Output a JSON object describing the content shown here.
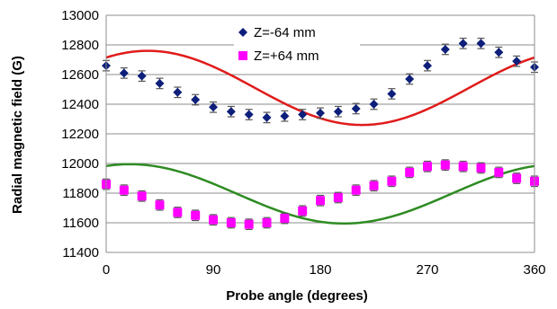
{
  "chart_data": {
    "type": "scatter",
    "xlabel": "Probe angle (degrees)",
    "ylabel": "Radial magnetic field (G)",
    "xlim": [
      0,
      360
    ],
    "ylim": [
      11400,
      13000
    ],
    "xticks": [
      0,
      90,
      180,
      270,
      360
    ],
    "yticks": [
      11400,
      11600,
      11800,
      12000,
      12200,
      12400,
      12600,
      12800,
      13000
    ],
    "grid": "horizontal",
    "legend_position": "top-center",
    "x": [
      0,
      15,
      30,
      45,
      60,
      75,
      90,
      105,
      120,
      135,
      150,
      165,
      180,
      195,
      210,
      225,
      240,
      255,
      270,
      285,
      300,
      315,
      330,
      345,
      360
    ],
    "series": [
      {
        "name": "Z=-64 mm",
        "marker": "diamond",
        "color": "#0d1f7a",
        "values": [
          12660,
          12610,
          12590,
          12540,
          12480,
          12430,
          12380,
          12350,
          12330,
          12310,
          12320,
          12330,
          12340,
          12350,
          12370,
          12400,
          12470,
          12570,
          12660,
          12770,
          12810,
          12810,
          12750,
          12690,
          12650
        ],
        "error": 35,
        "fit": {
          "type": "sinusoid",
          "mean": 12510,
          "amplitude": 250,
          "phase_deg": 125,
          "color": "#e01b1b"
        }
      },
      {
        "name": "Z=+64 mm",
        "marker": "square",
        "color": "#ff00ff",
        "values": [
          11860,
          11820,
          11780,
          11720,
          11670,
          11650,
          11620,
          11600,
          11590,
          11600,
          11630,
          11680,
          11750,
          11770,
          11820,
          11850,
          11880,
          11940,
          11980,
          11990,
          11980,
          11970,
          11940,
          11900,
          11880
        ],
        "error": 35,
        "fit": {
          "type": "sinusoid",
          "mean": 11795,
          "amplitude": 200,
          "phase_deg": 110,
          "color": "#2e8b22"
        }
      }
    ]
  }
}
